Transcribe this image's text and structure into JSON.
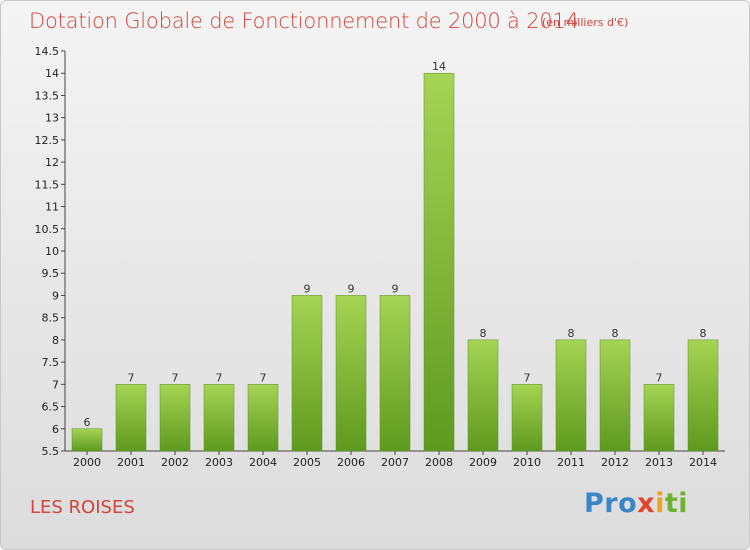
{
  "chart_data": {
    "type": "bar",
    "title": "Dotation Globale de Fonctionnement de 2000 à 2014",
    "unit_note": "(en milliers d'€)",
    "categories": [
      "2000",
      "2001",
      "2002",
      "2003",
      "2004",
      "2005",
      "2006",
      "2007",
      "2008",
      "2009",
      "2010",
      "2011",
      "2012",
      "2013",
      "2014"
    ],
    "values": [
      6,
      7,
      7,
      7,
      7,
      9,
      9,
      9,
      14,
      8,
      7,
      8,
      8,
      7,
      8
    ],
    "data_labels": [
      "6",
      "7",
      "7",
      "7",
      "7",
      "9",
      "9",
      "9",
      "14",
      "8",
      "7",
      "8",
      "8",
      "7",
      "8"
    ],
    "ylim": [
      5.5,
      14.5
    ],
    "yticks": [
      "5.5",
      "6",
      "6.5",
      "7",
      "7.5",
      "8",
      "8.5",
      "9",
      "9.5",
      "10",
      "10.5",
      "11",
      "11.5",
      "12",
      "12.5",
      "13",
      "13.5",
      "14",
      "14.5"
    ],
    "grid": false,
    "bar_color_top": "#a6d454",
    "bar_color_bottom": "#5e9a1e"
  },
  "footer": {
    "commune": "LES ROISES",
    "logo_parts": [
      "Pro",
      "x",
      "i",
      "ti"
    ]
  },
  "colors": {
    "title": "#d2453c",
    "axis": "#333333"
  }
}
